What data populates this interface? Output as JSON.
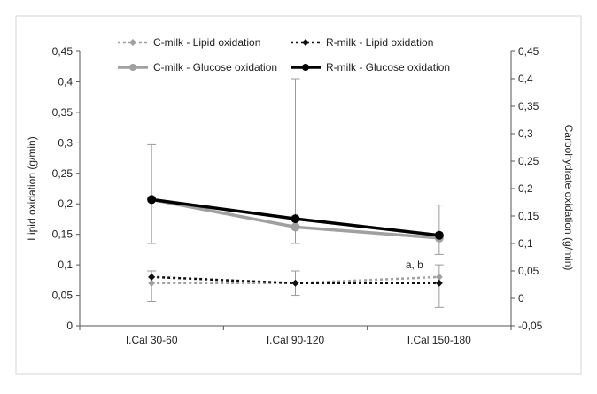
{
  "chart_data": {
    "type": "line",
    "categories": [
      "I.Cal 30-60",
      "I.Cal 90-120",
      "I.Cal 150-180"
    ],
    "y_left": {
      "label": "Lipid oxidation (g/min)",
      "range": [
        0,
        0.45
      ],
      "ticks": [
        "0",
        "0,05",
        "0,1",
        "0,15",
        "0,2",
        "0,25",
        "0,3",
        "0,35",
        "0,4",
        "0,45"
      ]
    },
    "y_right": {
      "label": "Carbohydrate oxidation (g/min)",
      "range": [
        -0.05,
        0.45
      ],
      "ticks": [
        "-0,05",
        "0",
        "0,05",
        "0,1",
        "0,15",
        "0,2",
        "0,25",
        "0,3",
        "0,35",
        "0,4",
        "0,45"
      ]
    },
    "series": [
      {
        "name": "C-milk - Lipid oxidation",
        "axis": "left",
        "color": "#a0a0a0",
        "dashed": true,
        "marker": "diamond",
        "values": [
          0.07,
          0.07,
          0.08
        ],
        "error_low": [
          0.04,
          0.05,
          0.03
        ],
        "error_high": [
          0.09,
          0.09,
          0.1
        ]
      },
      {
        "name": "R-milk - Lipid oxidation",
        "axis": "left",
        "color": "#111111",
        "dashed": true,
        "marker": "diamond",
        "values": [
          0.08,
          0.07,
          0.07
        ]
      },
      {
        "name": "C-milk - Glucose oxidation",
        "axis": "right",
        "color": "#a0a0a0",
        "dashed": false,
        "marker": "circle",
        "values": [
          0.18,
          0.13,
          0.11
        ],
        "error_low": [
          0.1,
          0.1,
          0.08
        ],
        "error_high": [
          0.28,
          0.4,
          0.17
        ]
      },
      {
        "name": "R-milk - Glucose oxidation",
        "axis": "right",
        "color": "#000000",
        "dashed": false,
        "marker": "circle",
        "values": [
          0.18,
          0.145,
          0.115
        ]
      }
    ],
    "annotations": [
      {
        "text": "a, b",
        "category": "I.Cal 150-180",
        "axis": "left",
        "y": 0.1
      }
    ],
    "legend": "top",
    "grid": false
  }
}
